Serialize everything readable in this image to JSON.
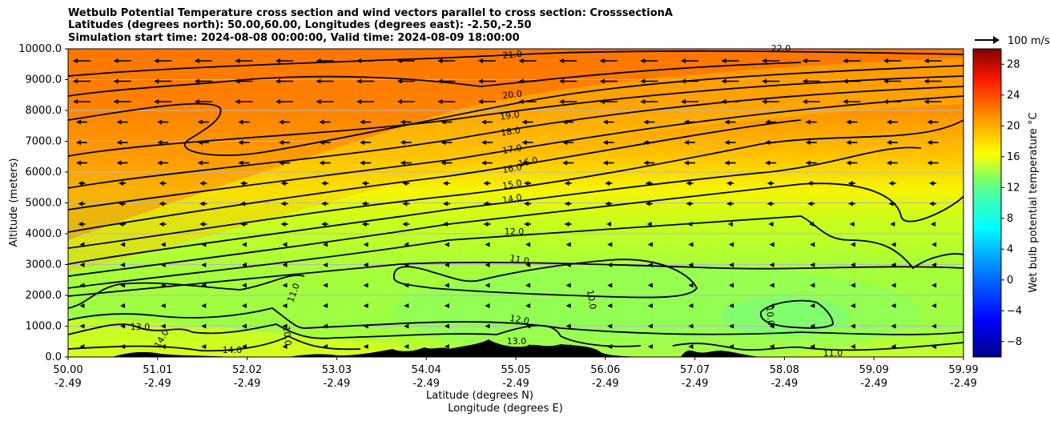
{
  "title_lines": [
    "Wetbulb Potential Temperature cross section and wind vectors parallel to cross section: CrosssectionA",
    "Latitudes (degrees north): 50.00,60.00, Longitudes (degrees east): -2.50,-2.50",
    "Simulation start time: 2024-08-08 00:00:00, Valid time: 2024-08-09 18:00:00"
  ],
  "chart_data": {
    "type": "heatmap",
    "ylabel": "Altitude (meters)",
    "xlabel_lines": [
      "Latitude (degrees N)",
      "Longitude (degrees E)"
    ],
    "ylim": [
      0,
      10000
    ],
    "y_ticks": [
      "0.0",
      "1000.0",
      "2000.0",
      "3000.0",
      "4000.0",
      "5000.0",
      "6000.0",
      "7000.0",
      "8000.0",
      "9000.0",
      "10000.0"
    ],
    "x_ticks": [
      {
        "lat": "50.00",
        "lon": "-2.49"
      },
      {
        "lat": "51.01",
        "lon": "-2.49"
      },
      {
        "lat": "52.02",
        "lon": "-2.49"
      },
      {
        "lat": "53.03",
        "lon": "-2.49"
      },
      {
        "lat": "54.04",
        "lon": "-2.49"
      },
      {
        "lat": "55.05",
        "lon": "-2.49"
      },
      {
        "lat": "56.06",
        "lon": "-2.49"
      },
      {
        "lat": "57.07",
        "lon": "-2.49"
      },
      {
        "lat": "58.08",
        "lon": "-2.49"
      },
      {
        "lat": "59.09",
        "lon": "-2.49"
      },
      {
        "lat": "59.99",
        "lon": "-2.49"
      }
    ],
    "colorbar": {
      "label": "Wet bulb potential temperature °C",
      "range": [
        -10,
        30
      ],
      "ticks": [
        "−8",
        "−4",
        "0",
        "4",
        "8",
        "12",
        "16",
        "20",
        "24",
        "28"
      ]
    },
    "quiver_key": "100 m/s",
    "contour_labels": [
      "21.0",
      "20.0",
      "19.0",
      "18.0",
      "17.0",
      "16.0",
      "16.0",
      "15.0",
      "14.0",
      "12.0",
      "11.0",
      "11.0",
      "10.0",
      "10.0",
      "13.0",
      "12.0",
      "11.0",
      "13.0",
      "14.0",
      "14.0",
      "22.0",
      "10.0"
    ],
    "grid": true,
    "colors": {
      "warm": "#ff7a00",
      "mid": "#f0ff00",
      "cool": "#a3ff3c"
    }
  }
}
